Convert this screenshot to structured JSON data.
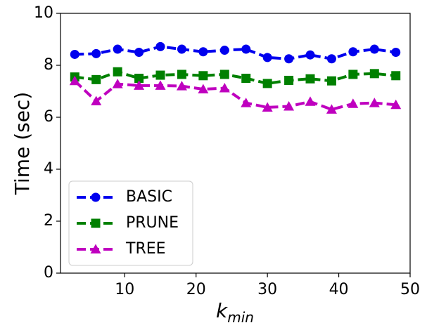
{
  "chart_data": {
    "type": "line",
    "title": "",
    "xlabel": "k",
    "xlabel_sub": "min",
    "ylabel": "Time (sec)",
    "xlim": [
      1,
      50
    ],
    "ylim": [
      0,
      10
    ],
    "xticks": [
      10,
      20,
      30,
      40,
      50
    ],
    "yticks": [
      0,
      2,
      4,
      6,
      8,
      10
    ],
    "x": [
      3,
      6,
      9,
      12,
      15,
      18,
      21,
      24,
      27,
      30,
      33,
      36,
      39,
      42,
      45,
      48
    ],
    "legend_position": "lower-left",
    "series": [
      {
        "name": "BASIC",
        "color": "#0000ee",
        "marker": "circle",
        "line": "dashed",
        "values": [
          8.42,
          8.45,
          8.62,
          8.5,
          8.72,
          8.62,
          8.52,
          8.58,
          8.62,
          8.3,
          8.25,
          8.4,
          8.25,
          8.52,
          8.62,
          8.5
        ]
      },
      {
        "name": "PRUNE",
        "color": "#008000",
        "marker": "square",
        "line": "dashed",
        "values": [
          7.55,
          7.45,
          7.75,
          7.5,
          7.62,
          7.65,
          7.6,
          7.65,
          7.5,
          7.3,
          7.42,
          7.48,
          7.4,
          7.65,
          7.68,
          7.6
        ]
      },
      {
        "name": "TREE",
        "color": "#bf00bf",
        "marker": "triangle",
        "line": "dashed",
        "values": [
          7.4,
          6.62,
          7.28,
          7.22,
          7.22,
          7.2,
          7.08,
          7.12,
          6.55,
          6.38,
          6.42,
          6.6,
          6.3,
          6.52,
          6.55,
          6.48
        ]
      }
    ]
  }
}
